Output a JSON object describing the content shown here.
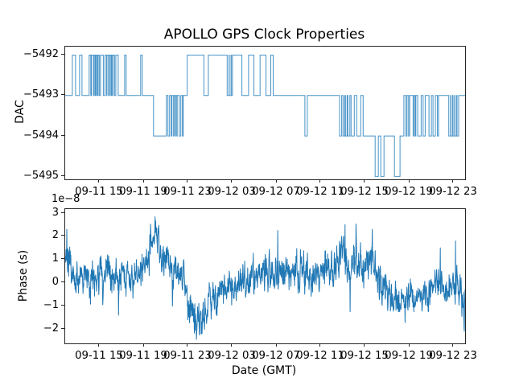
{
  "figure": {
    "title": "APOLLO GPS Clock Properties",
    "background": "#ffffff",
    "text_color": "#000000",
    "spine_color": "#262626"
  },
  "chart_data": [
    {
      "id": "dac-plot",
      "type": "line",
      "subtype": "step",
      "title": "APOLLO GPS Clock Properties",
      "ylabel": "DAC",
      "xlabel": "",
      "grid": false,
      "legend": "none",
      "line_color": "#4793c8",
      "line_color_base": "#1f77b4",
      "ylim": [
        -5495.15,
        -5491.8
      ],
      "yticks": {
        "values": [
          -5492,
          -5493,
          -5494,
          -5495
        ],
        "labels": [
          "−5492",
          "−5493",
          "−5494",
          "−5495"
        ]
      },
      "xticks": {
        "labels": [
          "09-11 15",
          "09-11 19",
          "09-11 23",
          "09-12 03",
          "09-12 07",
          "09-12 11",
          "09-12 15",
          "09-12 19",
          "09-12 23"
        ],
        "fractions": [
          0.0865,
          0.1972,
          0.3078,
          0.4185,
          0.5292,
          0.6398,
          0.7505,
          0.8612,
          0.9718
        ]
      },
      "steps": [
        [
          0.0,
          -5493
        ],
        [
          0.018,
          -5492
        ],
        [
          0.026,
          -5493
        ],
        [
          0.036,
          -5492
        ],
        [
          0.042,
          -5493
        ],
        [
          0.06,
          -5492
        ],
        [
          0.064,
          -5493
        ],
        [
          0.066,
          -5492
        ],
        [
          0.071,
          -5493
        ],
        [
          0.0723,
          -5492
        ],
        [
          0.0749,
          -5493
        ],
        [
          0.0755,
          -5492
        ],
        [
          0.0779,
          -5493
        ],
        [
          0.0783,
          -5492
        ],
        [
          0.0809,
          -5493
        ],
        [
          0.0823,
          -5492
        ],
        [
          0.0853,
          -5493
        ],
        [
          0.0884,
          -5492
        ],
        [
          0.0954,
          -5493
        ],
        [
          0.0994,
          -5492
        ],
        [
          0.1034,
          -5493
        ],
        [
          0.1044,
          -5492
        ],
        [
          0.1084,
          -5493
        ],
        [
          0.1094,
          -5492
        ],
        [
          0.1124,
          -5493
        ],
        [
          0.1131,
          -5492
        ],
        [
          0.1157,
          -5493
        ],
        [
          0.1163,
          -5492
        ],
        [
          0.1189,
          -5493
        ],
        [
          0.1197,
          -5492
        ],
        [
          0.1235,
          -5493
        ],
        [
          0.1265,
          -5492
        ],
        [
          0.1325,
          -5493
        ],
        [
          0.1486,
          -5492
        ],
        [
          0.1526,
          -5493
        ],
        [
          0.1888,
          -5492
        ],
        [
          0.1928,
          -5493
        ],
        [
          0.2209,
          -5494
        ],
        [
          0.253,
          -5493
        ],
        [
          0.257,
          -5494
        ],
        [
          0.261,
          -5493
        ],
        [
          0.2651,
          -5494
        ],
        [
          0.2671,
          -5493
        ],
        [
          0.2711,
          -5494
        ],
        [
          0.2721,
          -5493
        ],
        [
          0.2751,
          -5494
        ],
        [
          0.2761,
          -5493
        ],
        [
          0.2791,
          -5494
        ],
        [
          0.2801,
          -5493
        ],
        [
          0.2851,
          -5494
        ],
        [
          0.2892,
          -5493
        ],
        [
          0.2932,
          -5494
        ],
        [
          0.2952,
          -5493
        ],
        [
          0.3052,
          -5492
        ],
        [
          0.3468,
          -5493
        ],
        [
          0.358,
          -5492
        ],
        [
          0.405,
          -5493
        ],
        [
          0.4096,
          -5492
        ],
        [
          0.4102,
          -5493
        ],
        [
          0.4146,
          -5492
        ],
        [
          0.4152,
          -5493
        ],
        [
          0.4183,
          -5492
        ],
        [
          0.4418,
          -5493
        ],
        [
          0.4585,
          -5492
        ],
        [
          0.4719,
          -5493
        ],
        [
          0.4873,
          -5492
        ],
        [
          0.502,
          -5493
        ],
        [
          0.5141,
          -5492
        ],
        [
          0.5201,
          -5493
        ],
        [
          0.5994,
          -5494
        ],
        [
          0.6054,
          -5493
        ],
        [
          0.6861,
          -5494
        ],
        [
          0.6914,
          -5493
        ],
        [
          0.6948,
          -5494
        ],
        [
          0.6988,
          -5493
        ],
        [
          0.7008,
          -5494
        ],
        [
          0.7048,
          -5493
        ],
        [
          0.7068,
          -5494
        ],
        [
          0.7119,
          -5493
        ],
        [
          0.7149,
          -5494
        ],
        [
          0.7229,
          -5493
        ],
        [
          0.7289,
          -5494
        ],
        [
          0.739,
          -5493
        ],
        [
          0.745,
          -5494
        ],
        [
          0.7751,
          -5495
        ],
        [
          0.7831,
          -5494
        ],
        [
          0.7892,
          -5495
        ],
        [
          0.7972,
          -5494
        ],
        [
          0.8233,
          -5495
        ],
        [
          0.8373,
          -5494
        ],
        [
          0.8468,
          -5493
        ],
        [
          0.852,
          -5494
        ],
        [
          0.8548,
          -5493
        ],
        [
          0.8588,
          -5494
        ],
        [
          0.8614,
          -5493
        ],
        [
          0.8701,
          -5494
        ],
        [
          0.8715,
          -5493
        ],
        [
          0.8749,
          -5494
        ],
        [
          0.8769,
          -5493
        ],
        [
          0.8815,
          -5494
        ],
        [
          0.8902,
          -5493
        ],
        [
          0.895,
          -5494
        ],
        [
          0.9002,
          -5493
        ],
        [
          0.9096,
          -5494
        ],
        [
          0.9157,
          -5493
        ],
        [
          0.9197,
          -5494
        ],
        [
          0.9257,
          -5493
        ],
        [
          0.9307,
          -5494
        ],
        [
          0.9337,
          -5493
        ],
        [
          0.9592,
          -5494
        ],
        [
          0.9638,
          -5493
        ],
        [
          0.9648,
          -5494
        ],
        [
          0.9689,
          -5493
        ],
        [
          0.9699,
          -5494
        ],
        [
          0.9739,
          -5493
        ],
        [
          0.9749,
          -5494
        ],
        [
          0.9789,
          -5493
        ],
        [
          0.9799,
          -5494
        ],
        [
          0.9839,
          -5493
        ],
        [
          1.0,
          -5493
        ]
      ]
    },
    {
      "id": "phase-plot",
      "type": "line",
      "subtype": "noisy",
      "title": "",
      "ylabel": "Phase (s)",
      "xlabel": "Date (GMT)",
      "offset_text": "1e−8",
      "grid": false,
      "legend": "none",
      "line_color": "#1f77b4",
      "ylim": [
        -2.7,
        3.17
      ],
      "yticks": {
        "values": [
          3,
          2,
          1,
          0,
          -1,
          -2
        ],
        "labels": [
          "3",
          "2",
          "1",
          "0",
          "−1",
          "−2"
        ]
      },
      "xticks": {
        "labels": [
          "09-11 15",
          "09-11 19",
          "09-11 23",
          "09-12 03",
          "09-12 07",
          "09-12 11",
          "09-12 15",
          "09-12 19",
          "09-12 23"
        ],
        "fractions": [
          0.0865,
          0.1972,
          0.3078,
          0.4185,
          0.5292,
          0.6398,
          0.7505,
          0.8612,
          0.9718
        ]
      },
      "trend_keyframes": [
        [
          0.0,
          1.1,
          0.8
        ],
        [
          0.02,
          0.4,
          0.55
        ],
        [
          0.06,
          0.2,
          0.6
        ],
        [
          0.1,
          0.1,
          0.6
        ],
        [
          0.14,
          0.25,
          0.55
        ],
        [
          0.18,
          0.35,
          0.5
        ],
        [
          0.205,
          1.1,
          0.6
        ],
        [
          0.225,
          2.2,
          0.55
        ],
        [
          0.245,
          1.1,
          0.5
        ],
        [
          0.27,
          0.55,
          0.5
        ],
        [
          0.295,
          0.2,
          0.5
        ],
        [
          0.31,
          -0.9,
          0.6
        ],
        [
          0.325,
          -1.6,
          0.65
        ],
        [
          0.345,
          -1.6,
          0.6
        ],
        [
          0.36,
          -0.9,
          0.6
        ],
        [
          0.385,
          -0.4,
          0.6
        ],
        [
          0.415,
          -0.15,
          0.6
        ],
        [
          0.445,
          0.1,
          0.6
        ],
        [
          0.485,
          0.2,
          0.6
        ],
        [
          0.53,
          0.45,
          0.6
        ],
        [
          0.565,
          0.3,
          0.6
        ],
        [
          0.595,
          0.5,
          0.65
        ],
        [
          0.625,
          0.3,
          0.6
        ],
        [
          0.665,
          0.6,
          0.6
        ],
        [
          0.695,
          1.2,
          0.65
        ],
        [
          0.715,
          1.0,
          0.65
        ],
        [
          0.745,
          0.45,
          0.65
        ],
        [
          0.765,
          1.0,
          0.7
        ],
        [
          0.785,
          0.35,
          0.6
        ],
        [
          0.805,
          -0.6,
          0.5
        ],
        [
          0.835,
          -0.75,
          0.5
        ],
        [
          0.865,
          -0.4,
          0.55
        ],
        [
          0.885,
          -0.6,
          0.5
        ],
        [
          0.915,
          -0.3,
          0.55
        ],
        [
          0.935,
          0.1,
          0.5
        ],
        [
          0.955,
          -0.2,
          0.5
        ],
        [
          0.975,
          0.15,
          0.55
        ],
        [
          0.99,
          -0.5,
          0.7
        ],
        [
          1.0,
          -1.3,
          0.7
        ]
      ],
      "spikes": [
        [
          0.004,
          2.3
        ],
        [
          0.225,
          2.84
        ],
        [
          0.328,
          -2.45
        ],
        [
          0.532,
          2.25
        ],
        [
          0.7,
          2.5
        ],
        [
          0.768,
          2.3
        ],
        [
          0.938,
          1.5
        ],
        [
          0.976,
          1.8
        ],
        [
          0.998,
          -2.1
        ]
      ],
      "noise": {
        "seed": 987654321,
        "points": 1500,
        "ar": 0.45,
        "gain": 1.5,
        "spike_prob": 0.013,
        "spike_gain": 2.2
      }
    }
  ]
}
